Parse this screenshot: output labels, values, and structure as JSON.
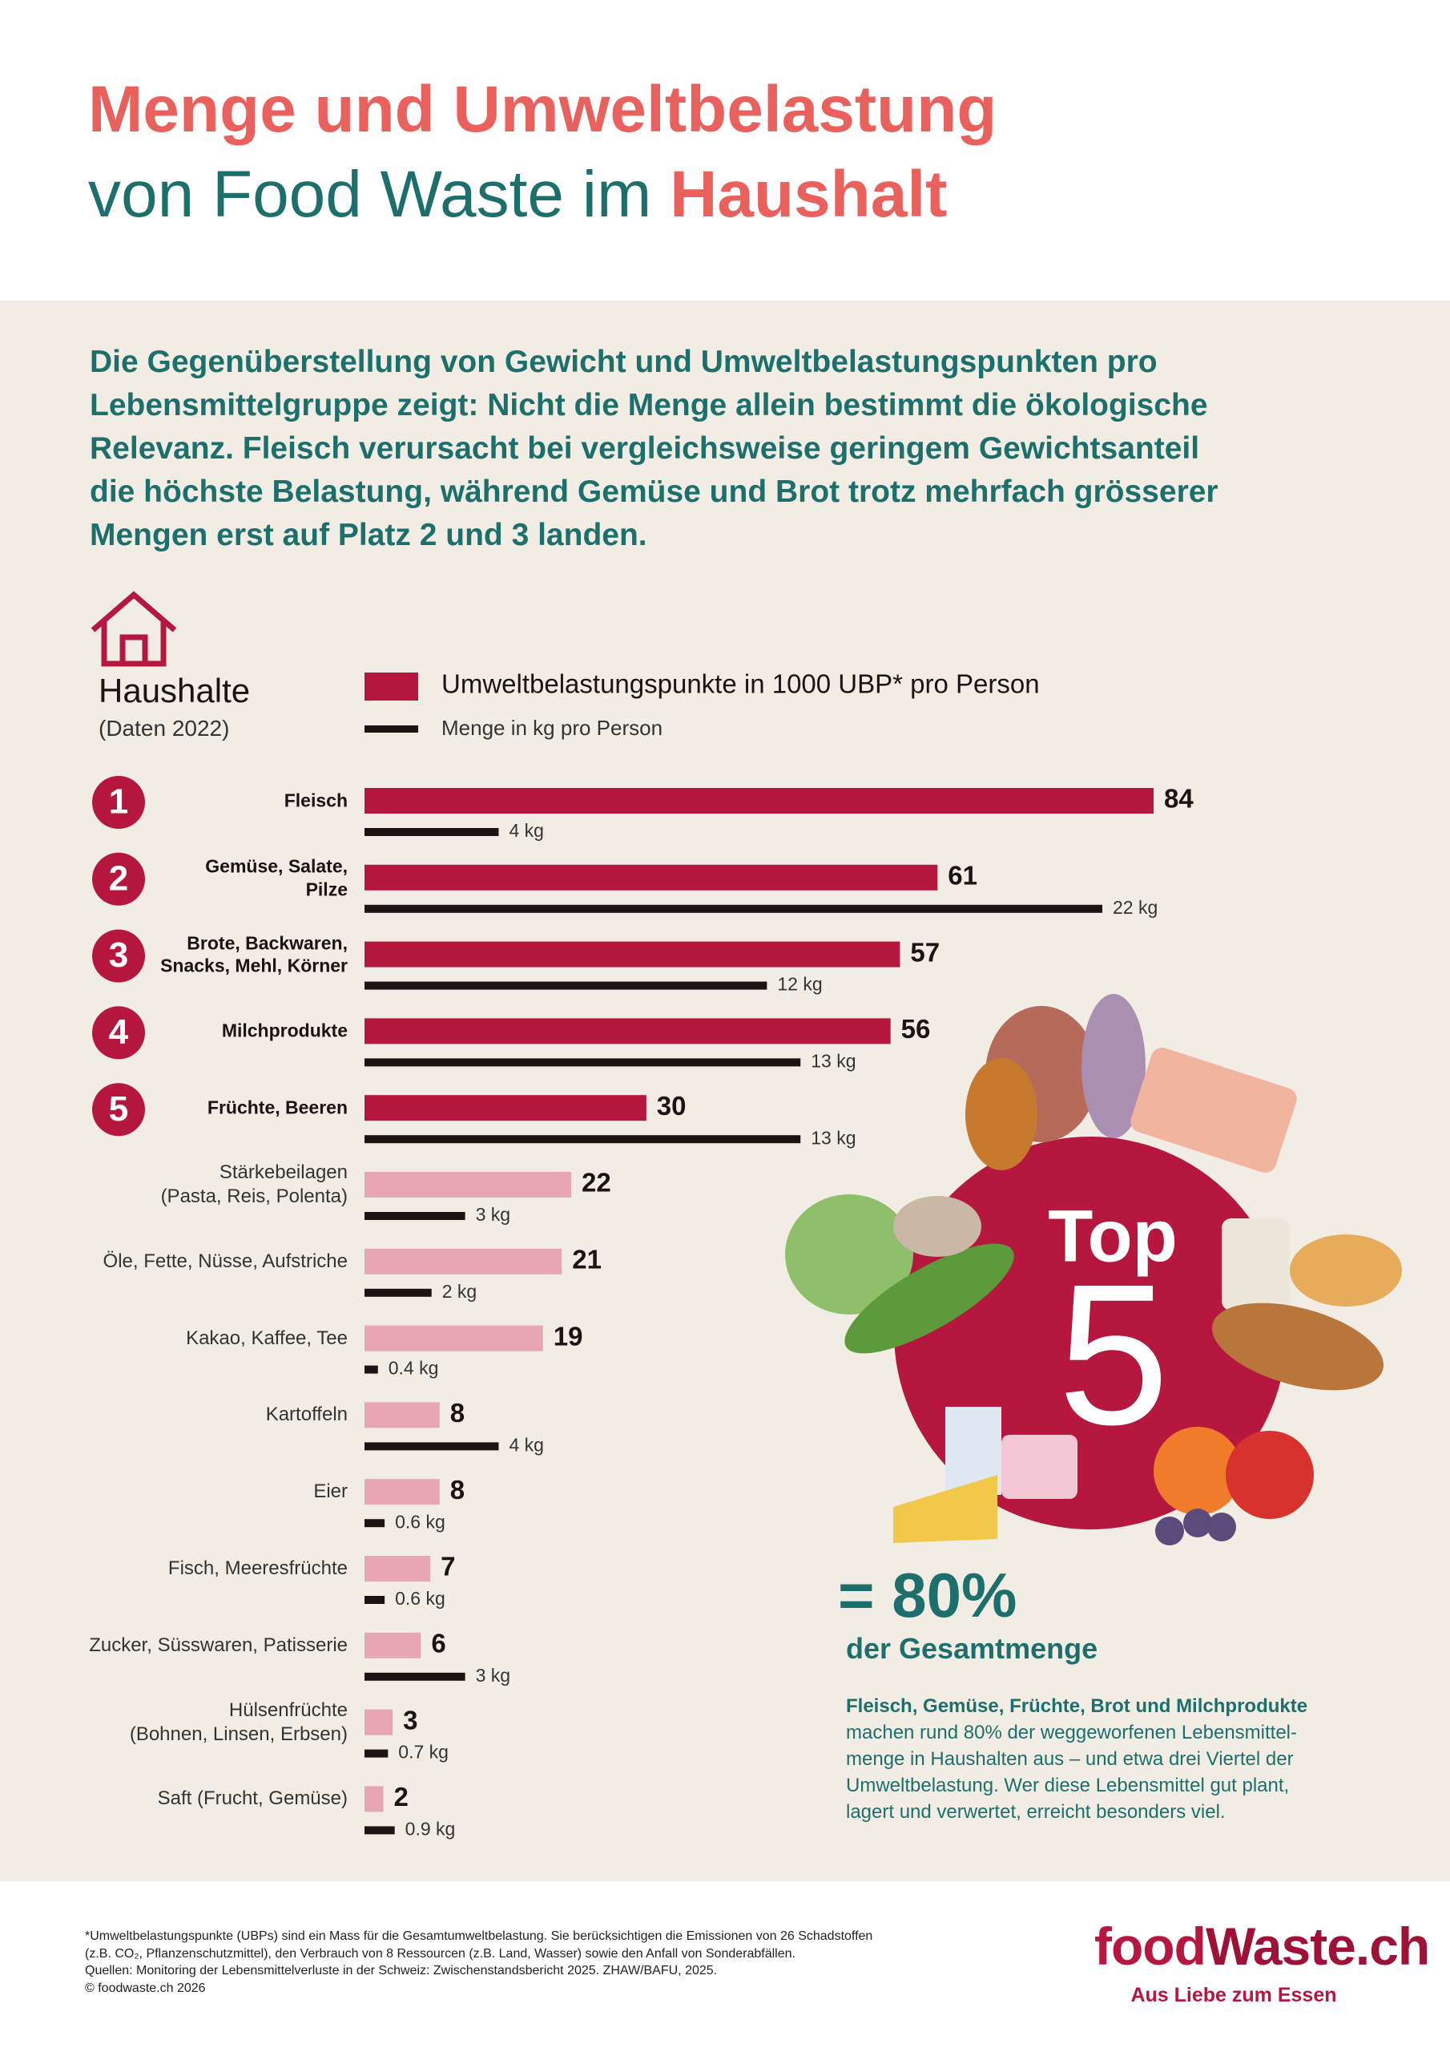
{
  "header": {
    "title_line1": "Menge und Umweltbelastung",
    "title_line2_a": "von Food Waste im",
    "title_line2_b": "Haushalt"
  },
  "intro": [
    "Die Gegenüberstellung von Gewicht und Umweltbelastungspunkten pro",
    "Lebensmittelgruppe zeigt: Nicht die Menge allein bestimmt die ökologische",
    "Relevanz. Fleisch verursacht bei vergleichsweise geringem Gewichtsanteil",
    "die höchste Belastung, während Gemüse und Brot trotz mehrfach grösserer",
    "Mengen erst auf Platz 2 und 3 landen."
  ],
  "chart_data": {
    "type": "bar",
    "orientation": "horizontal",
    "title": "Haushalte",
    "subtitle": "(Daten 2022)",
    "categories": [
      "Fleisch",
      "Gemüse, Salate,\nPilze",
      "Brote, Backwaren,\nSnacks, Mehl, Körner",
      "Milchprodukte",
      "Früchte, Beeren",
      "Stärkebeilagen\n(Pasta, Reis, Polenta)",
      "Öle, Fette, Nüsse, Aufstriche",
      "Kakao, Kaffee, Tee",
      "Kartoffeln",
      "Eier",
      "Fisch, Meeresfrüchte",
      "Zucker, Süsswaren, Patisserie",
      "Hülsenfrüchte\n(Bohnen, Linsen, Erbsen)",
      "Saft (Frucht, Gemüse)"
    ],
    "ranks": [
      1,
      2,
      3,
      4,
      5
    ],
    "series": [
      {
        "name": "Umweltbelastungspunkte in 1000 UBP* pro Person",
        "color": "#b5173f",
        "point_colors": [
          "#b5173f",
          "#b5173f",
          "#b5173f",
          "#b5173f",
          "#b5173f",
          "#e6a7b0",
          "#e6a7b0",
          "#e6a7b0",
          "#e6a7b0",
          "#e6a7b0",
          "#e6a7b0",
          "#e6a7b0",
          "#e6a7b0",
          "#e6a7b0"
        ],
        "values": [
          84,
          61,
          57,
          56,
          30,
          22,
          21,
          19,
          8,
          8,
          7,
          6,
          3,
          2
        ]
      },
      {
        "name": "Menge in kg pro Person",
        "color": "#1a1414",
        "values": [
          4,
          22,
          12,
          13,
          13,
          3,
          2,
          0.4,
          4,
          0.6,
          0.6,
          3,
          0.7,
          0.9
        ],
        "value_labels": [
          "4 kg",
          "22 kg",
          "12 kg",
          "13 kg",
          "13 kg",
          "3 kg",
          "2 kg",
          "0.4 kg",
          "4 kg",
          "0.6 kg",
          "0.6 kg",
          "3 kg",
          "0.7 kg",
          "0.9 kg"
        ]
      }
    ]
  },
  "badge": {
    "top": "Top",
    "number": "5",
    "share": "= 80%",
    "share_label": "der Gesamtmenge"
  },
  "summary": {
    "lead": "Fleisch, Gemüse, Früchte, Brot und Milchprodukte",
    "lines": [
      "machen rund 80% der weggeworfenen Lebensmittel-",
      "menge in Haushalten aus – und etwa drei Viertel der",
      "Umweltbelastung. Wer diese Lebensmittel gut plant,",
      "lagert und verwertet, erreicht besonders viel."
    ]
  },
  "footnote": [
    "*Umweltbelastungspunkte (UBPs) sind ein Mass für die Gesamtumweltbelastung. Sie berücksichtigen die Emissionen von 26 Schadstoffen",
    "(z.B. CO₂, Pflanzenschutzmittel), den Verbrauch von 8 Ressourcen (z.B. Land, Wasser) sowie den Anfall von Sonderabfällen.",
    "Quellen:  Monitoring der Lebensmittelverluste in der Schweiz: Zwischenstandsbericht 2025. ZHAW/BAFU, 2025.",
    "© foodwaste.ch 2026"
  ],
  "logo": {
    "part1": "food",
    "part2": "Waste.ch",
    "tagline": "Aus Liebe zum Essen"
  }
}
